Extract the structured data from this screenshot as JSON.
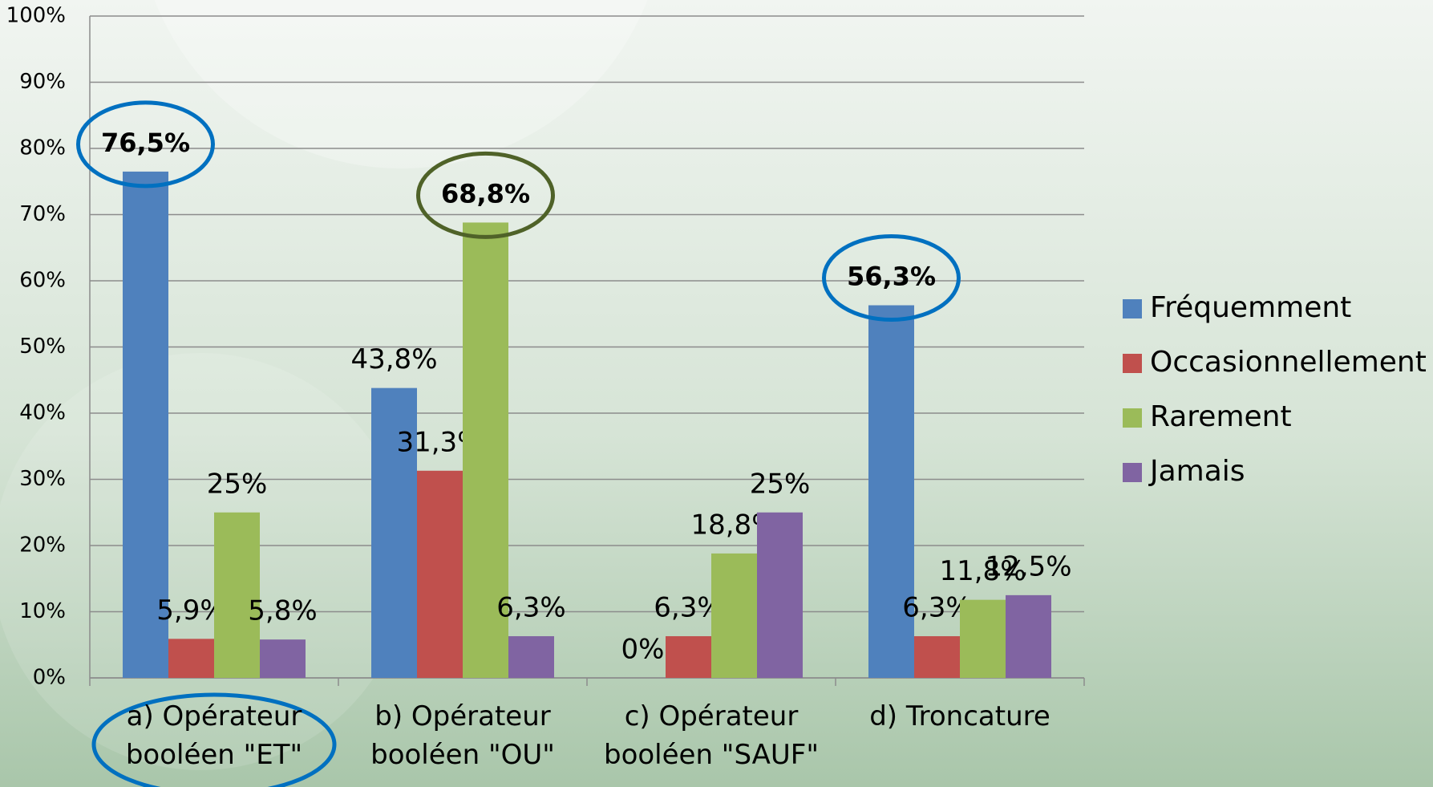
{
  "chart_data": {
    "type": "bar",
    "categories": [
      "a) Opérateur booléen \"ET\"",
      "b) Opérateur booléen \"OU\"",
      "c) Opérateur booléen \"SAUF\"",
      "d) Troncature"
    ],
    "series": [
      {
        "name": "Fréquemment",
        "color": "#4f81bd",
        "values": [
          76.5,
          43.8,
          0,
          56.3
        ],
        "value_labels": [
          "76,5%",
          "43,8%",
          "0%",
          "56,3%"
        ]
      },
      {
        "name": "Occasionnellement",
        "color": "#c0504d",
        "values": [
          5.9,
          31.3,
          6.3,
          6.3
        ],
        "value_labels": [
          "5,9%",
          "31,3%",
          "6,3%",
          "6,3%"
        ]
      },
      {
        "name": "Rarement",
        "color": "#9bbb59",
        "values": [
          25,
          68.8,
          18.8,
          11.8
        ],
        "value_labels": [
          "25%",
          "68,8%",
          "18,8%",
          "11,8%"
        ]
      },
      {
        "name": "Jamais",
        "color": "#8064a2",
        "values": [
          5.8,
          6.3,
          25,
          12.5
        ],
        "value_labels": [
          "5,8%",
          "6,3%",
          "25%",
          "12,5%"
        ]
      }
    ],
    "ylim": [
      0,
      100
    ],
    "yticks": [
      {
        "value": 0,
        "label": "0%"
      },
      {
        "value": 10,
        "label": "10%"
      },
      {
        "value": 20,
        "label": "20%"
      },
      {
        "value": 30,
        "label": "30%"
      },
      {
        "value": 40,
        "label": "40%"
      },
      {
        "value": 50,
        "label": "50%"
      },
      {
        "value": 60,
        "label": "60%"
      },
      {
        "value": 70,
        "label": "70%"
      },
      {
        "value": 80,
        "label": "80%"
      },
      {
        "value": 90,
        "label": "90%"
      },
      {
        "value": 100,
        "label": "100%"
      }
    ],
    "grid": true,
    "legend": "right"
  }
}
